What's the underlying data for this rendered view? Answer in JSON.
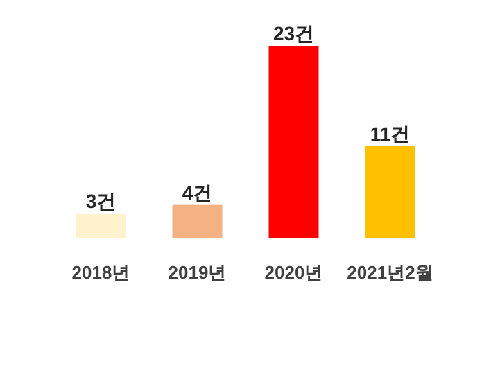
{
  "chart_data": {
    "type": "bar",
    "categories": [
      "2018년",
      "2019년",
      "2020년",
      "2021년2월"
    ],
    "values": [
      3,
      4,
      23,
      11
    ],
    "colors": [
      "#fff2cc",
      "#f4b183",
      "#ff0000",
      "#ffc000"
    ],
    "value_labels": [
      "3건",
      "4건",
      "23건",
      "11건"
    ]
  }
}
